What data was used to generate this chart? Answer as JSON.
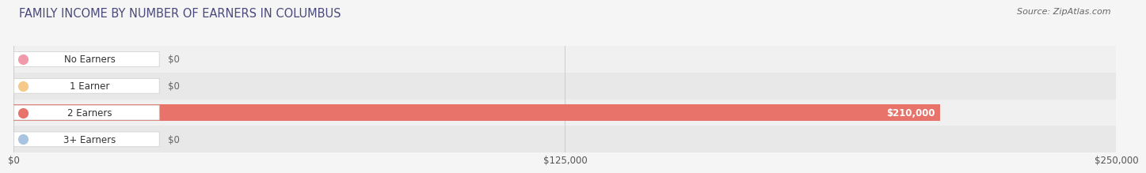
{
  "title": "FAMILY INCOME BY NUMBER OF EARNERS IN COLUMBUS",
  "source": "Source: ZipAtlas.com",
  "categories": [
    "No Earners",
    "1 Earner",
    "2 Earners",
    "3+ Earners"
  ],
  "values": [
    0,
    0,
    210000,
    0
  ],
  "bar_colors": [
    "#f09aaa",
    "#f5c98a",
    "#e8736a",
    "#a8c4e0"
  ],
  "xlim": [
    0,
    250000
  ],
  "xticks": [
    0,
    125000,
    250000
  ],
  "xtick_labels": [
    "$0",
    "$125,000",
    "$250,000"
  ],
  "bar_height": 0.6,
  "background_color": "#f5f5f5",
  "row_bg_light": "#f0f0f0",
  "row_bg_dark": "#e8e8e8",
  "title_color": "#4a4a7a",
  "title_fontsize": 10.5,
  "axis_label_fontsize": 8.5,
  "bar_label_fontsize": 8.5,
  "category_fontsize": 8.5,
  "source_fontsize": 8
}
